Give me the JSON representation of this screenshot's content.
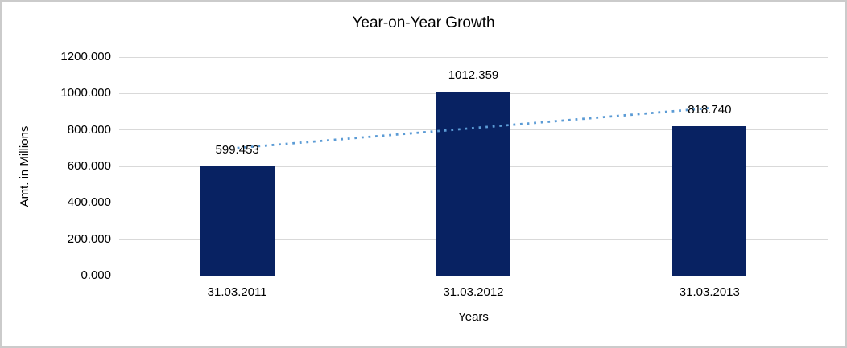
{
  "chart_data": {
    "type": "bar",
    "title": "Year-on-Year Growth",
    "xlabel": "Years",
    "ylabel": "Amt. in Millions",
    "categories": [
      "31.03.2011",
      "31.03.2012",
      "31.03.2013"
    ],
    "values": [
      599.453,
      1012.359,
      818.74
    ],
    "value_labels": [
      "599.453",
      "1012.359",
      "818.740"
    ],
    "ylim": [
      0,
      1200
    ],
    "y_tick_step": 200,
    "y_tick_labels": [
      "0.000",
      "200.000",
      "400.000",
      "600.000",
      "800.000",
      "1000.000",
      "1200.000"
    ],
    "grid": true,
    "legend": "none",
    "bar_color": "#082262",
    "trendline": {
      "type": "linear",
      "style": "dotted",
      "color": "#5B9BD5",
      "start_value": 700.6,
      "end_value": 919.8
    },
    "colors": {
      "gridline": "#D9D9D9",
      "text": "#000000",
      "background": "#FFFFFF",
      "frame_border": "#CBCBCB"
    }
  }
}
